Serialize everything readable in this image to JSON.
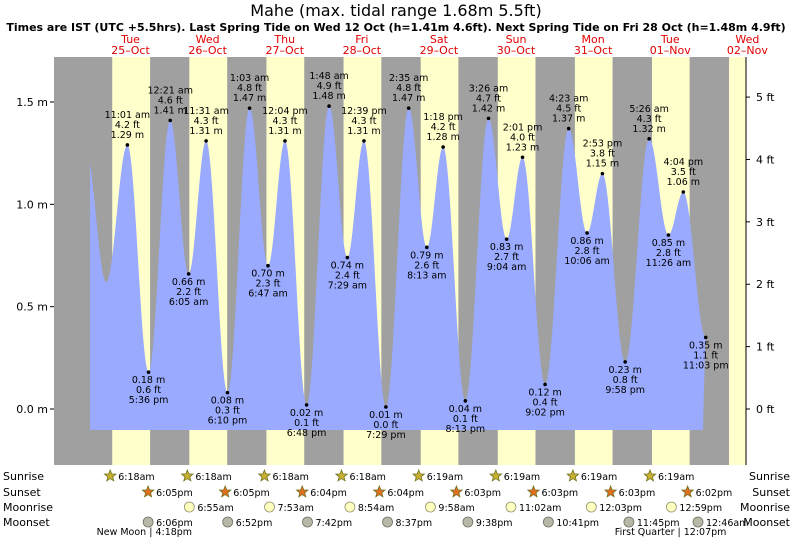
{
  "chart_data": {
    "type": "area",
    "title": "Mahe (max. tidal range 1.68m 5.5ft)",
    "subtitle": "Times are IST (UTC +5.5hrs). Last Spring Tide on Wed 12 Oct (h=1.41m 4.6ft). Next Spring Tide on Fri 28 Oct (h=1.48m 4.9ft)",
    "y_left": {
      "ticks": [
        0.0,
        0.5,
        1.0,
        1.5
      ],
      "labels": [
        "0.0 m",
        "0.5 m",
        "1.0 m",
        "1.5 m"
      ],
      "ylim": [
        -0.22,
        1.75
      ]
    },
    "y_right": {
      "ticks_ft": [
        0,
        1,
        2,
        3,
        4,
        5
      ],
      "labels": [
        "0 ft",
        "1 ft",
        "2 ft",
        "3 ft",
        "4 ft",
        "5 ft"
      ]
    },
    "days": [
      {
        "dow": "Tue",
        "date": "25–Oct"
      },
      {
        "dow": "Wed",
        "date": "26–Oct"
      },
      {
        "dow": "Thu",
        "date": "27–Oct"
      },
      {
        "dow": "Fri",
        "date": "28–Oct"
      },
      {
        "dow": "Sat",
        "date": "29–Oct"
      },
      {
        "dow": "Sun",
        "date": "30–Oct"
      },
      {
        "dow": "Mon",
        "date": "31–Oct"
      },
      {
        "dow": "Tue",
        "date": "01–Nov"
      },
      {
        "dow": "Wed",
        "date": "02–Nov"
      }
    ],
    "tides": [
      {
        "day": 0,
        "hour": 11.0167,
        "h": 1.29,
        "type": "high",
        "time": "11:01 am",
        "m": "1.29 m",
        "ft": "4.2 ft"
      },
      {
        "day": 0,
        "hour": 17.6,
        "h": 0.18,
        "type": "low",
        "time": "5:36 pm",
        "m": "0.18 m",
        "ft": "0.6 ft"
      },
      {
        "day": 1,
        "hour": 0.35,
        "h": 1.41,
        "type": "high",
        "time": "12:21 am",
        "m": "1.41 m",
        "ft": "4.6 ft"
      },
      {
        "day": 1,
        "hour": 6.0833,
        "h": 0.66,
        "type": "low",
        "time": "6:05 am",
        "m": "0.66 m",
        "ft": "2.2 ft"
      },
      {
        "day": 1,
        "hour": 11.5167,
        "h": 1.31,
        "type": "high",
        "time": "11:31 am",
        "m": "1.31 m",
        "ft": "4.3 ft"
      },
      {
        "day": 1,
        "hour": 18.1667,
        "h": 0.08,
        "type": "low",
        "time": "6:10 pm",
        "m": "0.08 m",
        "ft": "0.3 ft"
      },
      {
        "day": 2,
        "hour": 1.05,
        "h": 1.47,
        "type": "high",
        "time": "1:03 am",
        "m": "1.47 m",
        "ft": "4.8 ft"
      },
      {
        "day": 2,
        "hour": 6.7833,
        "h": 0.7,
        "type": "low",
        "time": "6:47 am",
        "m": "0.70 m",
        "ft": "2.3 ft"
      },
      {
        "day": 2,
        "hour": 12.0667,
        "h": 1.31,
        "type": "high",
        "time": "12:04 pm",
        "m": "1.31 m",
        "ft": "4.3 ft"
      },
      {
        "day": 2,
        "hour": 18.8,
        "h": 0.02,
        "type": "low",
        "time": "6:48 pm",
        "m": "0.02 m",
        "ft": "0.1 ft"
      },
      {
        "day": 3,
        "hour": 1.8,
        "h": 1.48,
        "type": "high",
        "time": "1:48 am",
        "m": "1.48 m",
        "ft": "4.9 ft"
      },
      {
        "day": 3,
        "hour": 7.4833,
        "h": 0.74,
        "type": "low",
        "time": "7:29 am",
        "m": "0.74 m",
        "ft": "2.4 ft"
      },
      {
        "day": 3,
        "hour": 12.65,
        "h": 1.31,
        "type": "high",
        "time": "12:39 pm",
        "m": "1.31 m",
        "ft": "4.3 ft"
      },
      {
        "day": 3,
        "hour": 19.4833,
        "h": 0.01,
        "type": "low",
        "time": "7:29 pm",
        "m": "0.01 m",
        "ft": "0.0 ft"
      },
      {
        "day": 4,
        "hour": 2.5833,
        "h": 1.47,
        "type": "high",
        "time": "2:35 am",
        "m": "1.47 m",
        "ft": "4.8 ft"
      },
      {
        "day": 4,
        "hour": 8.2167,
        "h": 0.79,
        "type": "low",
        "time": "8:13 am",
        "m": "0.79 m",
        "ft": "2.6 ft"
      },
      {
        "day": 4,
        "hour": 13.3,
        "h": 1.28,
        "type": "high",
        "time": "1:18 pm",
        "m": "1.28 m",
        "ft": "4.2 ft"
      },
      {
        "day": 4,
        "hour": 20.2167,
        "h": 0.04,
        "type": "low",
        "time": "8:13 pm",
        "m": "0.04 m",
        "ft": "0.1 ft"
      },
      {
        "day": 5,
        "hour": 3.4333,
        "h": 1.42,
        "type": "high",
        "time": "3:26 am",
        "m": "1.42 m",
        "ft": "4.7 ft"
      },
      {
        "day": 5,
        "hour": 9.0667,
        "h": 0.83,
        "type": "low",
        "time": "9:04 am",
        "m": "0.83 m",
        "ft": "2.7 ft"
      },
      {
        "day": 5,
        "hour": 14.0167,
        "h": 1.23,
        "type": "high",
        "time": "2:01 pm",
        "m": "1.23 m",
        "ft": "4.0 ft"
      },
      {
        "day": 5,
        "hour": 21.0333,
        "h": 0.12,
        "type": "low",
        "time": "9:02 pm",
        "m": "0.12 m",
        "ft": "0.4 ft"
      },
      {
        "day": 6,
        "hour": 4.3833,
        "h": 1.37,
        "type": "high",
        "time": "4:23 am",
        "m": "1.37 m",
        "ft": "4.5 ft"
      },
      {
        "day": 6,
        "hour": 10.1,
        "h": 0.86,
        "type": "low",
        "time": "10:06 am",
        "m": "0.86 m",
        "ft": "2.8 ft"
      },
      {
        "day": 6,
        "hour": 14.8833,
        "h": 1.15,
        "type": "high",
        "time": "2:53 pm",
        "m": "1.15 m",
        "ft": "3.8 ft"
      },
      {
        "day": 6,
        "hour": 21.9667,
        "h": 0.23,
        "type": "low",
        "time": "9:58 pm",
        "m": "0.23 m",
        "ft": "0.8 ft"
      },
      {
        "day": 7,
        "hour": 5.4333,
        "h": 1.32,
        "type": "high",
        "time": "5:26 am",
        "m": "1.32 m",
        "ft": "4.3 ft"
      },
      {
        "day": 7,
        "hour": 11.4333,
        "h": 0.85,
        "type": "low",
        "time": "11:26 am",
        "m": "0.85 m",
        "ft": "2.8 ft"
      },
      {
        "day": 7,
        "hour": 16.0667,
        "h": 1.06,
        "type": "high",
        "time": "4:04 pm",
        "m": "1.06 m",
        "ft": "3.5 ft"
      },
      {
        "day": 7,
        "hour": 23.05,
        "h": 0.35,
        "type": "low",
        "time": "11:03 pm",
        "m": "0.35 m",
        "ft": "1.1 ft"
      }
    ],
    "astro": {
      "row_labels": [
        "Sunrise",
        "Sunset",
        "Moonrise",
        "Moonset"
      ],
      "sunrise": [
        {
          "day": 0,
          "hour": 6.3,
          "text": "6:18am"
        },
        {
          "day": 1,
          "hour": 6.3,
          "text": "6:18am"
        },
        {
          "day": 2,
          "hour": 6.3,
          "text": "6:18am"
        },
        {
          "day": 3,
          "hour": 6.3,
          "text": "6:18am"
        },
        {
          "day": 4,
          "hour": 6.3167,
          "text": "6:19am"
        },
        {
          "day": 5,
          "hour": 6.3167,
          "text": "6:19am"
        },
        {
          "day": 6,
          "hour": 6.3167,
          "text": "6:19am"
        },
        {
          "day": 7,
          "hour": 6.3167,
          "text": "6:19am"
        }
      ],
      "sunset": [
        {
          "day": 0,
          "hour": 18.0833,
          "text": "6:05pm"
        },
        {
          "day": 1,
          "hour": 18.0833,
          "text": "6:05pm"
        },
        {
          "day": 2,
          "hour": 18.0667,
          "text": "6:04pm"
        },
        {
          "day": 3,
          "hour": 18.0667,
          "text": "6:04pm"
        },
        {
          "day": 4,
          "hour": 18.05,
          "text": "6:03pm"
        },
        {
          "day": 5,
          "hour": 18.05,
          "text": "6:03pm"
        },
        {
          "day": 6,
          "hour": 18.05,
          "text": "6:03pm"
        },
        {
          "day": 7,
          "hour": 18.0333,
          "text": "6:02pm"
        }
      ],
      "moonrise": [
        {
          "day": 1,
          "hour": 6.9167,
          "text": "6:55am"
        },
        {
          "day": 2,
          "hour": 7.8833,
          "text": "7:53am"
        },
        {
          "day": 3,
          "hour": 8.9,
          "text": "8:54am"
        },
        {
          "day": 4,
          "hour": 9.9667,
          "text": "9:58am"
        },
        {
          "day": 5,
          "hour": 11.0333,
          "text": "11:02am"
        },
        {
          "day": 6,
          "hour": 12.05,
          "text": "12:03pm"
        },
        {
          "day": 7,
          "hour": 12.9833,
          "text": "12:59pm"
        }
      ],
      "moonset": [
        {
          "day": 0,
          "hour": 18.1,
          "text": "6:06pm"
        },
        {
          "day": 1,
          "hour": 18.8667,
          "text": "6:52pm"
        },
        {
          "day": 2,
          "hour": 19.7,
          "text": "7:42pm"
        },
        {
          "day": 3,
          "hour": 20.6167,
          "text": "8:37pm"
        },
        {
          "day": 4,
          "hour": 21.6333,
          "text": "9:38pm"
        },
        {
          "day": 5,
          "hour": 22.6833,
          "text": "10:41pm"
        },
        {
          "day": 6,
          "hour": 23.75,
          "text": "11:45pm"
        },
        {
          "day": 8,
          "hour": 0.7667,
          "text": "12:46am"
        }
      ],
      "phases": [
        {
          "day": 0,
          "hour": 16.3,
          "text": "New Moon | 4:18pm"
        },
        {
          "day": 7,
          "hour": 12.1167,
          "text": "First Quarter | 12:07pm"
        }
      ]
    },
    "colors": {
      "day": "#ffffcc",
      "night": "#a0a0a0",
      "water": "#99aaff",
      "dayLabel": "#e00000",
      "star": "#c8b030",
      "starEdge": "#707020",
      "moonLight": "#ffffc0",
      "moonDark": "#b8b8a8"
    }
  }
}
